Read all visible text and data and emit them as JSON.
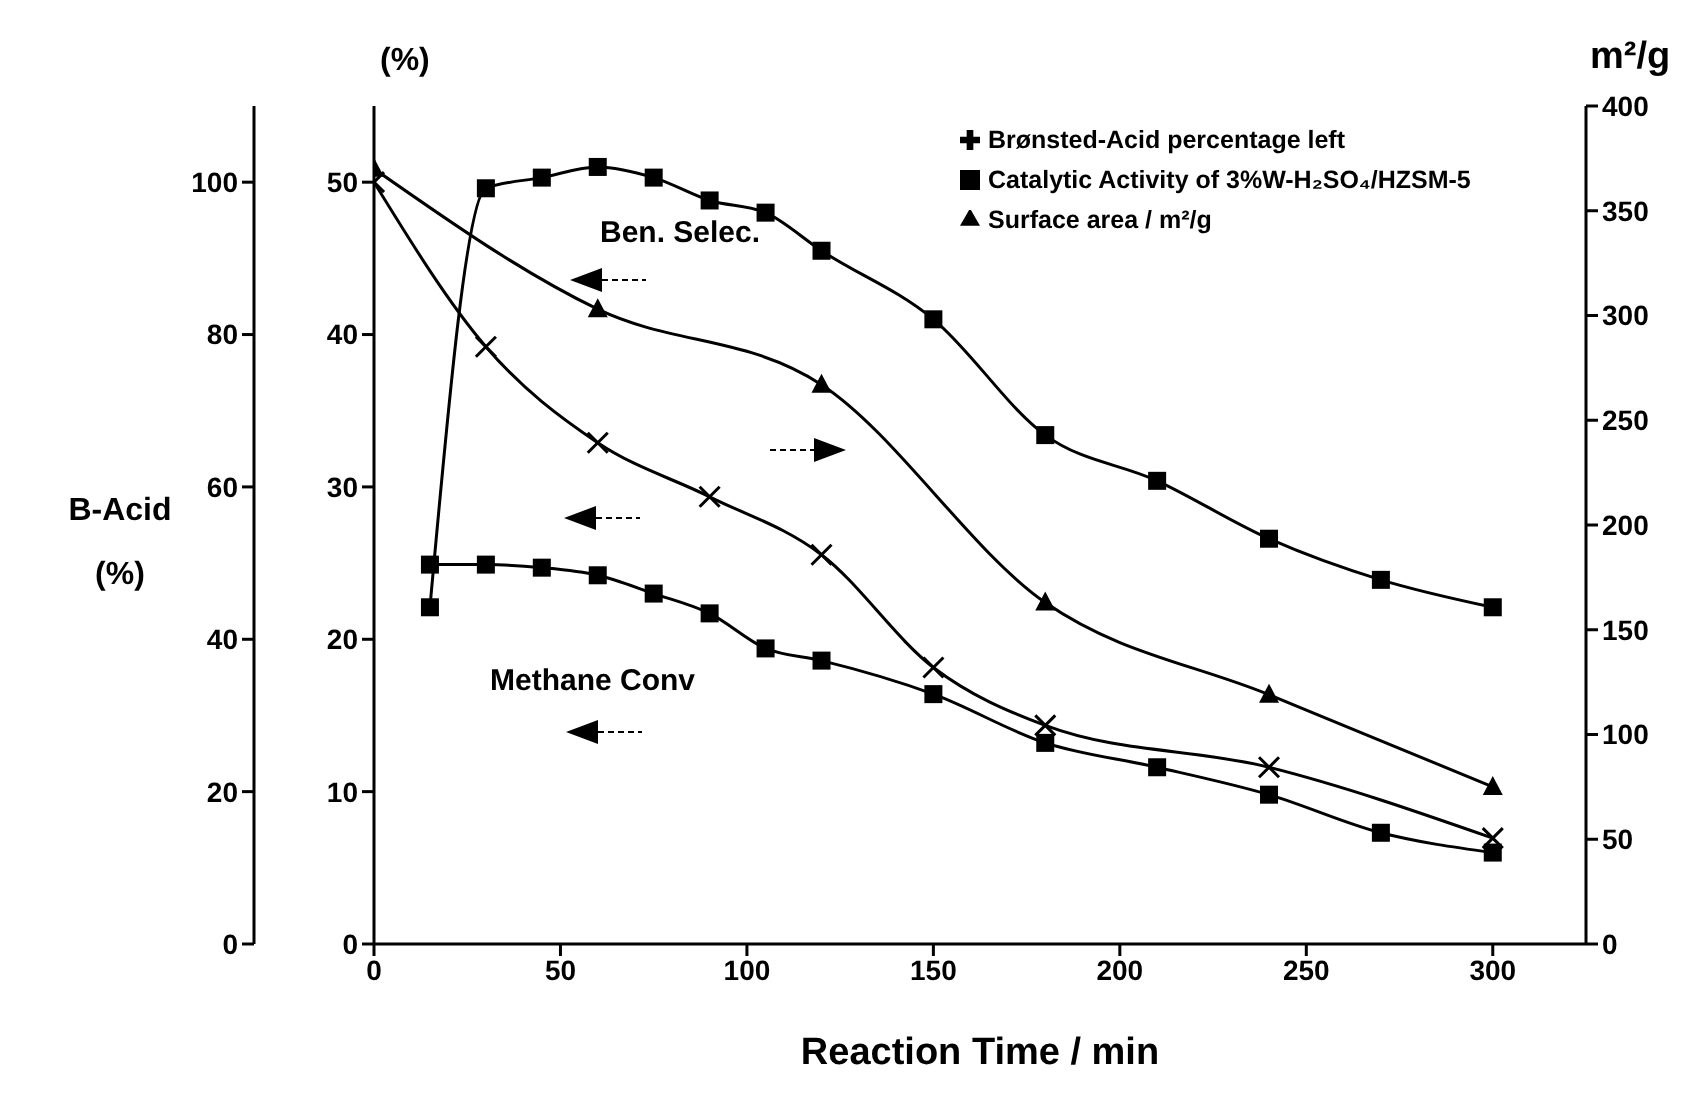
{
  "chart_data": {
    "type": "line",
    "xlabel": "Reaction Time / min",
    "ylabel": "B-Acid (%)",
    "y3label": "(%)",
    "y2label": "m²/g",
    "xlim": [
      0,
      325
    ],
    "xticks": [
      0,
      50,
      100,
      150,
      200,
      250,
      300
    ],
    "ylim": [
      0,
      110
    ],
    "yticks": [
      0,
      20,
      40,
      60,
      80,
      100
    ],
    "y3lim": [
      0,
      55
    ],
    "y3ticks": [
      0,
      10,
      20,
      30,
      40,
      50
    ],
    "y2lim": [
      0,
      400
    ],
    "y2ticks": [
      0,
      50,
      100,
      150,
      200,
      250,
      300,
      350,
      400
    ],
    "legend": "top right",
    "line_style": "solid",
    "annotations": [
      "Ben. Selec.",
      "Methane Conv"
    ],
    "series": [
      {
        "name": "Catalytic Activity of 3%W-H₂SO₄/HZSM-5",
        "color": "#000000",
        "marker": "square",
        "axis": "y3",
        "x": [
          15,
          30,
          45,
          60,
          75,
          90,
          105,
          120,
          150,
          180,
          210,
          240,
          270,
          300
        ],
        "values": [
          22.1,
          49.6,
          50.3,
          51.0,
          50.3,
          48.8,
          48.0,
          45.5,
          41.0,
          33.4,
          30.4,
          26.6,
          23.9,
          22.1
        ]
      },
      {
        "color": "#000000",
        "marker": "square",
        "axis": "y3",
        "x": [
          15,
          30,
          45,
          60,
          75,
          90,
          105,
          120,
          150,
          180,
          210,
          240,
          270,
          300
        ],
        "values": [
          24.9,
          24.9,
          24.7,
          24.2,
          23.0,
          21.7,
          19.4,
          18.6,
          16.4,
          13.2,
          11.6,
          9.8,
          7.3,
          6.0
        ]
      },
      {
        "name": "Surface area / m²/g",
        "color": "#000000",
        "marker": "triangle",
        "axis": "y2",
        "x": [
          0,
          60,
          120,
          180,
          240,
          300
        ],
        "values": [
          370,
          303,
          267,
          163,
          119,
          75
        ]
      },
      {
        "name": "Brønsted-Acid percentage left",
        "color": "#000000",
        "marker": "cross",
        "x": [
          0,
          30,
          60,
          90,
          120,
          150,
          180,
          240,
          300
        ],
        "values": [
          100,
          78.4,
          65.8,
          58.7,
          51.1,
          36.3,
          28.7,
          23.2,
          13.9
        ]
      }
    ]
  }
}
